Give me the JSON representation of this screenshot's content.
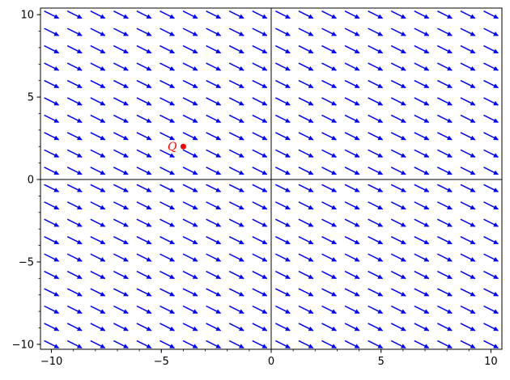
{
  "chart_data": {
    "type": "vector_field",
    "xlim": [
      -10.5,
      10.5
    ],
    "ylim": [
      -10.3,
      10.4
    ],
    "xticks": [
      {
        "value": -10,
        "label": "−10"
      },
      {
        "value": -5,
        "label": "−5"
      },
      {
        "value": 0,
        "label": "0"
      },
      {
        "value": 5,
        "label": "5"
      },
      {
        "value": 10,
        "label": "10"
      }
    ],
    "yticks": [
      {
        "value": -10,
        "label": "−10"
      },
      {
        "value": -5,
        "label": "−5"
      },
      {
        "value": 0,
        "label": "0"
      },
      {
        "value": 5,
        "label": "5"
      },
      {
        "value": 10,
        "label": "10"
      }
    ],
    "minor_tick_step": 1,
    "field": {
      "x_start": -10,
      "x_end": 10,
      "x_count": 20,
      "y_start": -10,
      "y_end": 10,
      "y_count": 20,
      "vector": [
        1,
        -0.5
      ],
      "color": "#0000ff"
    },
    "axes_through_origin": true,
    "grid": false,
    "point": {
      "x": -4,
      "y": 2,
      "label": "Q",
      "color": "#ff0000"
    }
  }
}
